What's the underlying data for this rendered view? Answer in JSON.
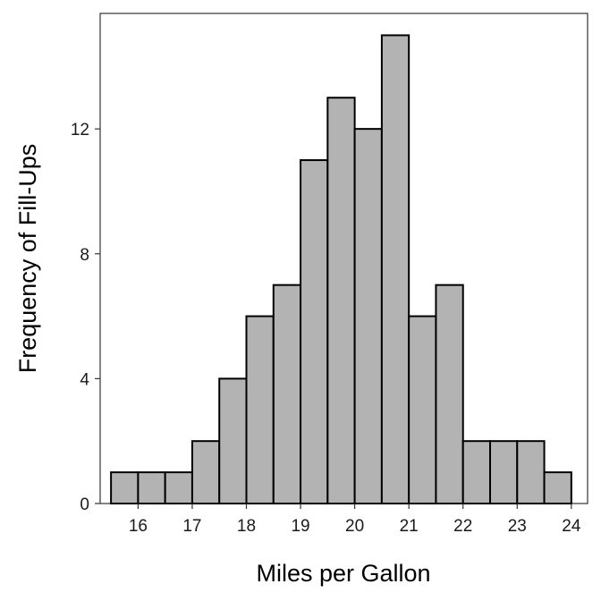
{
  "chart_data": {
    "type": "bar",
    "xlabel": "Miles per Gallon",
    "ylabel": "Frequency of Fill-Ups",
    "bin_edges": [
      15.5,
      16.0,
      16.5,
      17.0,
      17.5,
      18.0,
      18.5,
      19.0,
      19.5,
      20.0,
      20.5,
      21.0,
      21.5,
      22.0,
      22.5,
      23.0,
      23.5,
      24.0
    ],
    "values": [
      1,
      1,
      1,
      2,
      4,
      6,
      7,
      11,
      13,
      12,
      15,
      6,
      7,
      2,
      2,
      2,
      1
    ],
    "xlim": [
      15.3,
      24.3
    ],
    "ylim": [
      0,
      15.7
    ],
    "xticks": [
      "16",
      "17",
      "18",
      "19",
      "20",
      "21",
      "22",
      "23",
      "24"
    ],
    "yticks": [
      "0",
      "4",
      "8",
      "12"
    ],
    "grid": false,
    "colors": {
      "bar_fill": "#b3b3b3",
      "bar_stroke": "#000000",
      "axis": "#333333"
    }
  }
}
